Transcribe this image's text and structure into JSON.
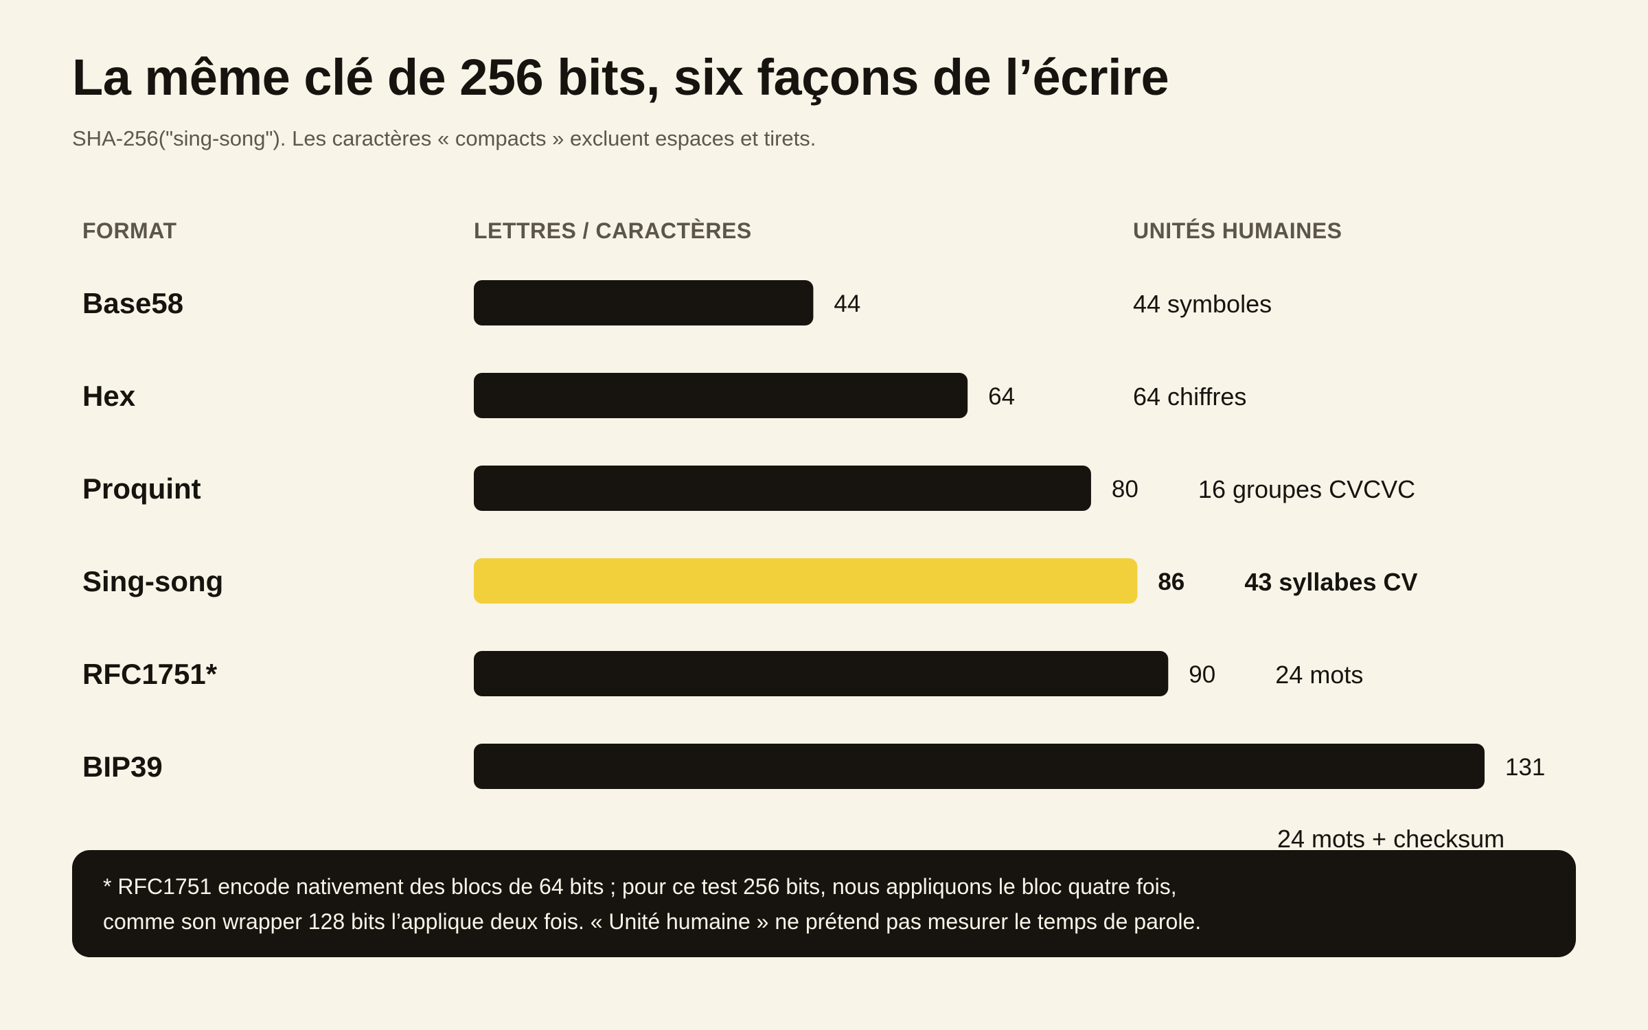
{
  "title": "La même clé de 256 bits, six façons de l’écrire",
  "subtitle": "SHA-256(\"sing-song\"). Les caractères « compacts » excluent espaces et tirets.",
  "columns": {
    "format": "FORMAT",
    "letters": "LETTRES / CARACTÈRES",
    "units": "UNITÉS HUMAINES"
  },
  "colors": {
    "bar": "#17130f",
    "highlight": "#f2d03b",
    "background": "#f8f4e8"
  },
  "chart_data": {
    "type": "bar",
    "orientation": "horizontal",
    "categories": [
      "Base58",
      "Hex",
      "Proquint",
      "Sing-song",
      "RFC1751*",
      "BIP39"
    ],
    "values": [
      44,
      64,
      80,
      86,
      90,
      131
    ],
    "units": [
      "44 symboles",
      "64 chiffres",
      "16 groupes CVCVC",
      "43 syllabes CV",
      "24 mots",
      "24 mots + checksum"
    ],
    "highlight": "Sing-song",
    "xlim": [
      0,
      131
    ],
    "grid": false
  },
  "footnote": {
    "line1": "* RFC1751 encode nativement des blocs de 64 bits ; pour ce test 256 bits, nous appliquons le bloc quatre fois,",
    "line2": "comme son wrapper 128 bits l’applique deux fois. « Unité humaine » ne prétend pas mesurer le temps de parole."
  }
}
